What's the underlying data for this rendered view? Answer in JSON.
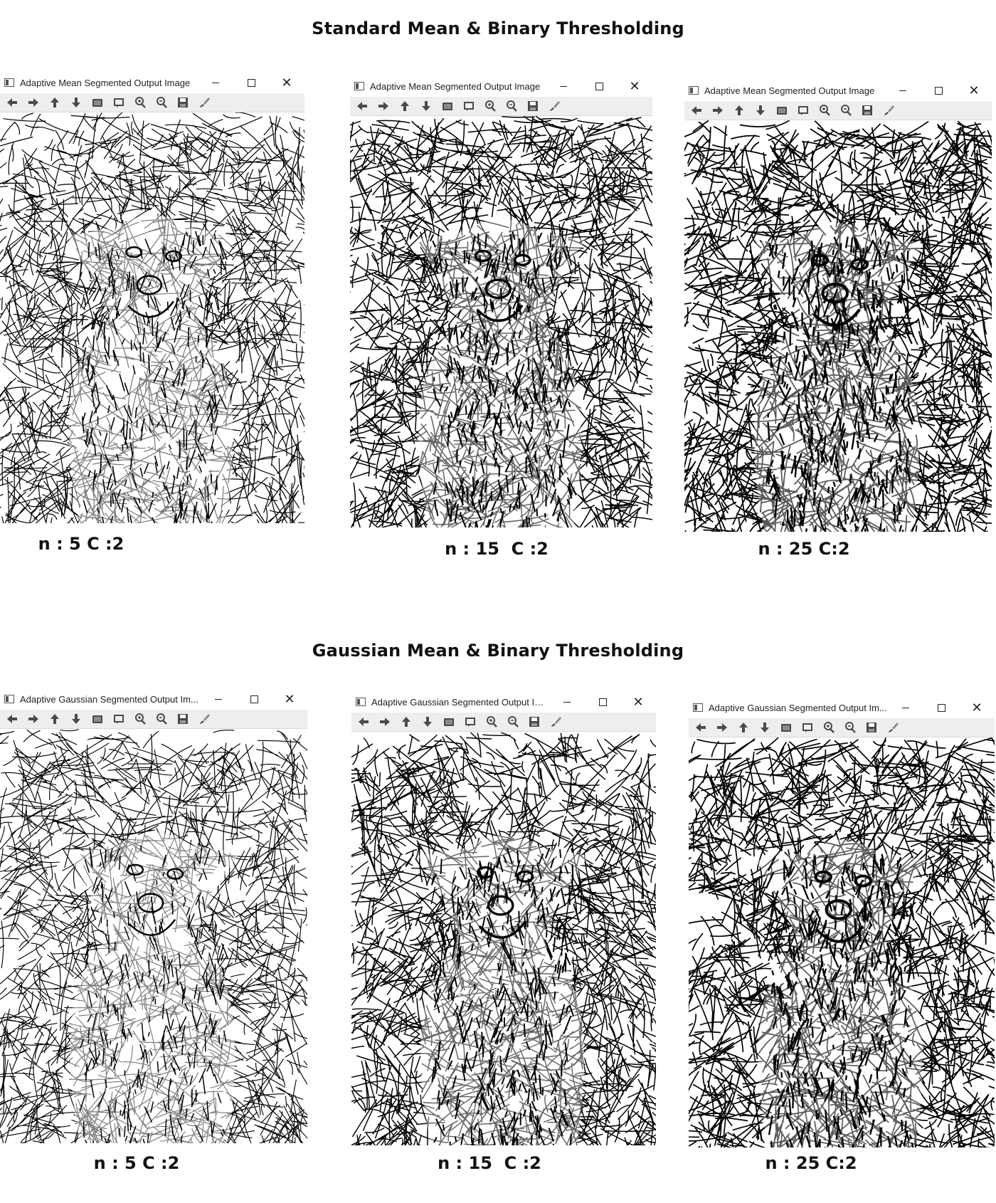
{
  "sections": [
    {
      "title": "Standard Mean & Binary Thresholding",
      "windows": [
        {
          "title": "Adaptive Mean Segmented Output Image",
          "caption": "n : 5 C :2",
          "density": 0.42,
          "contrast": 0.35
        },
        {
          "title": "Adaptive Mean Segmented Output Image",
          "caption": "n : 15  C :2",
          "density": 0.5,
          "contrast": 0.65
        },
        {
          "title": "Adaptive Mean Segmented Output Image",
          "caption": "n : 25 C:2",
          "density": 0.55,
          "contrast": 0.85
        }
      ]
    },
    {
      "title": "Gaussian Mean & Binary Thresholding",
      "windows": [
        {
          "title": "Adaptive Gaussian Segmented Output Im...",
          "caption": "n : 5 C :2",
          "density": 0.4,
          "contrast": 0.3
        },
        {
          "title": "Adaptive Gaussian Segmented Output Im...",
          "caption": "n : 15  C :2",
          "density": 0.48,
          "contrast": 0.6
        },
        {
          "title": "Adaptive Gaussian Segmented Output Im...",
          "caption": "n : 25 C:2",
          "density": 0.52,
          "contrast": 0.8
        }
      ]
    }
  ],
  "window_controls": {
    "minimize": "–",
    "maximize": "□",
    "close": "✕"
  },
  "toolbar_icons": [
    "arrow-left-icon",
    "arrow-right-icon",
    "arrow-up-icon",
    "arrow-down-icon",
    "image-icon",
    "select-region-icon",
    "zoom-in-icon",
    "zoom-out-icon",
    "save-icon",
    "brush-icon"
  ],
  "colors": {
    "foreground": "#000000",
    "background": "#ffffff",
    "toolbar": "#eeeeee"
  }
}
